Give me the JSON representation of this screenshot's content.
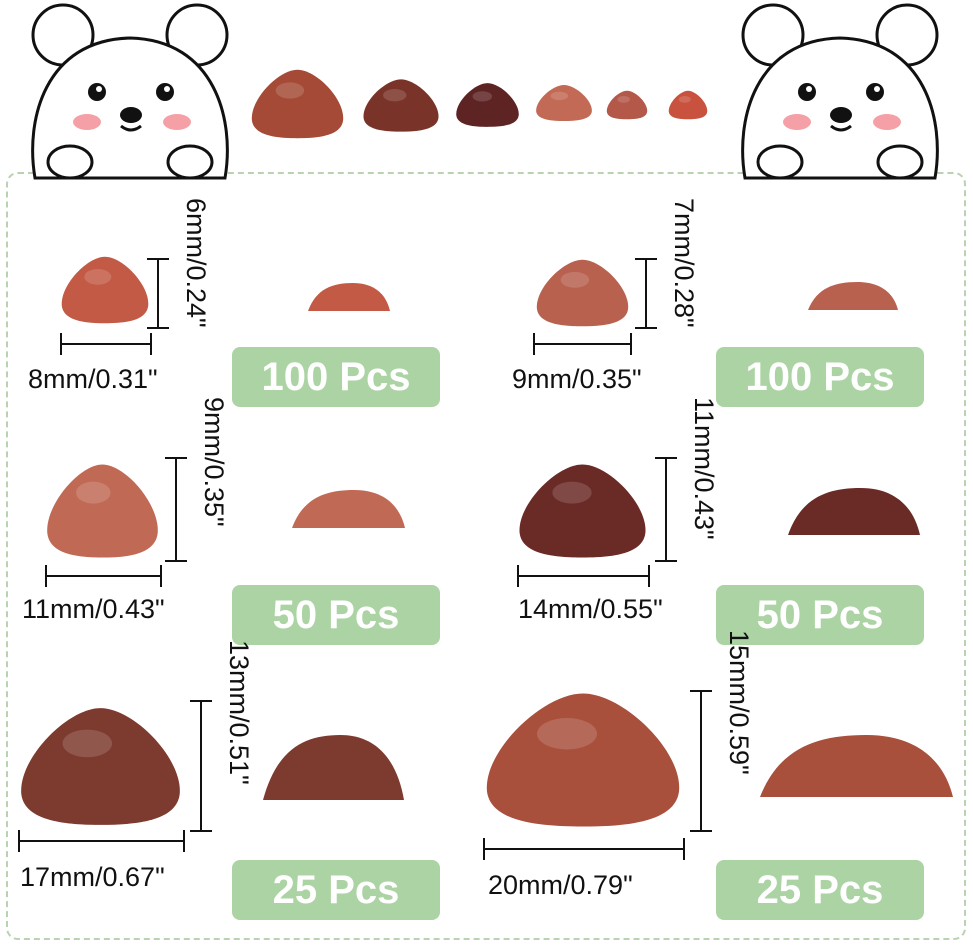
{
  "products": [
    {
      "width_label": "8mm/0.31\"",
      "height_label": "6mm/0.24\"",
      "quantity": "100 Pcs",
      "color": "#c25a45"
    },
    {
      "width_label": "9mm/0.35\"",
      "height_label": "7mm/0.28\"",
      "quantity": "100 Pcs",
      "color": "#b8614f"
    },
    {
      "width_label": "11mm/0.43\"",
      "height_label": "9mm/0.35\"",
      "quantity": "50 Pcs",
      "color": "#c06a55"
    },
    {
      "width_label": "14mm/0.55\"",
      "height_label": "11mm/0.43\"",
      "quantity": "50 Pcs",
      "color": "#6a2a26"
    },
    {
      "width_label": "17mm/0.67\"",
      "height_label": "13mm/0.51\"",
      "quantity": "25 Pcs",
      "color": "#7d3a2e"
    },
    {
      "width_label": "20mm/0.79\"",
      "height_label": "15mm/0.59\"",
      "quantity": "25 Pcs",
      "color": "#a8503c"
    }
  ],
  "top_row_colors": [
    "#a44a36",
    "#7a3328",
    "#5e2424",
    "#c26a55",
    "#b4584a",
    "#c8523e"
  ],
  "badge_color": "#acd3a4"
}
